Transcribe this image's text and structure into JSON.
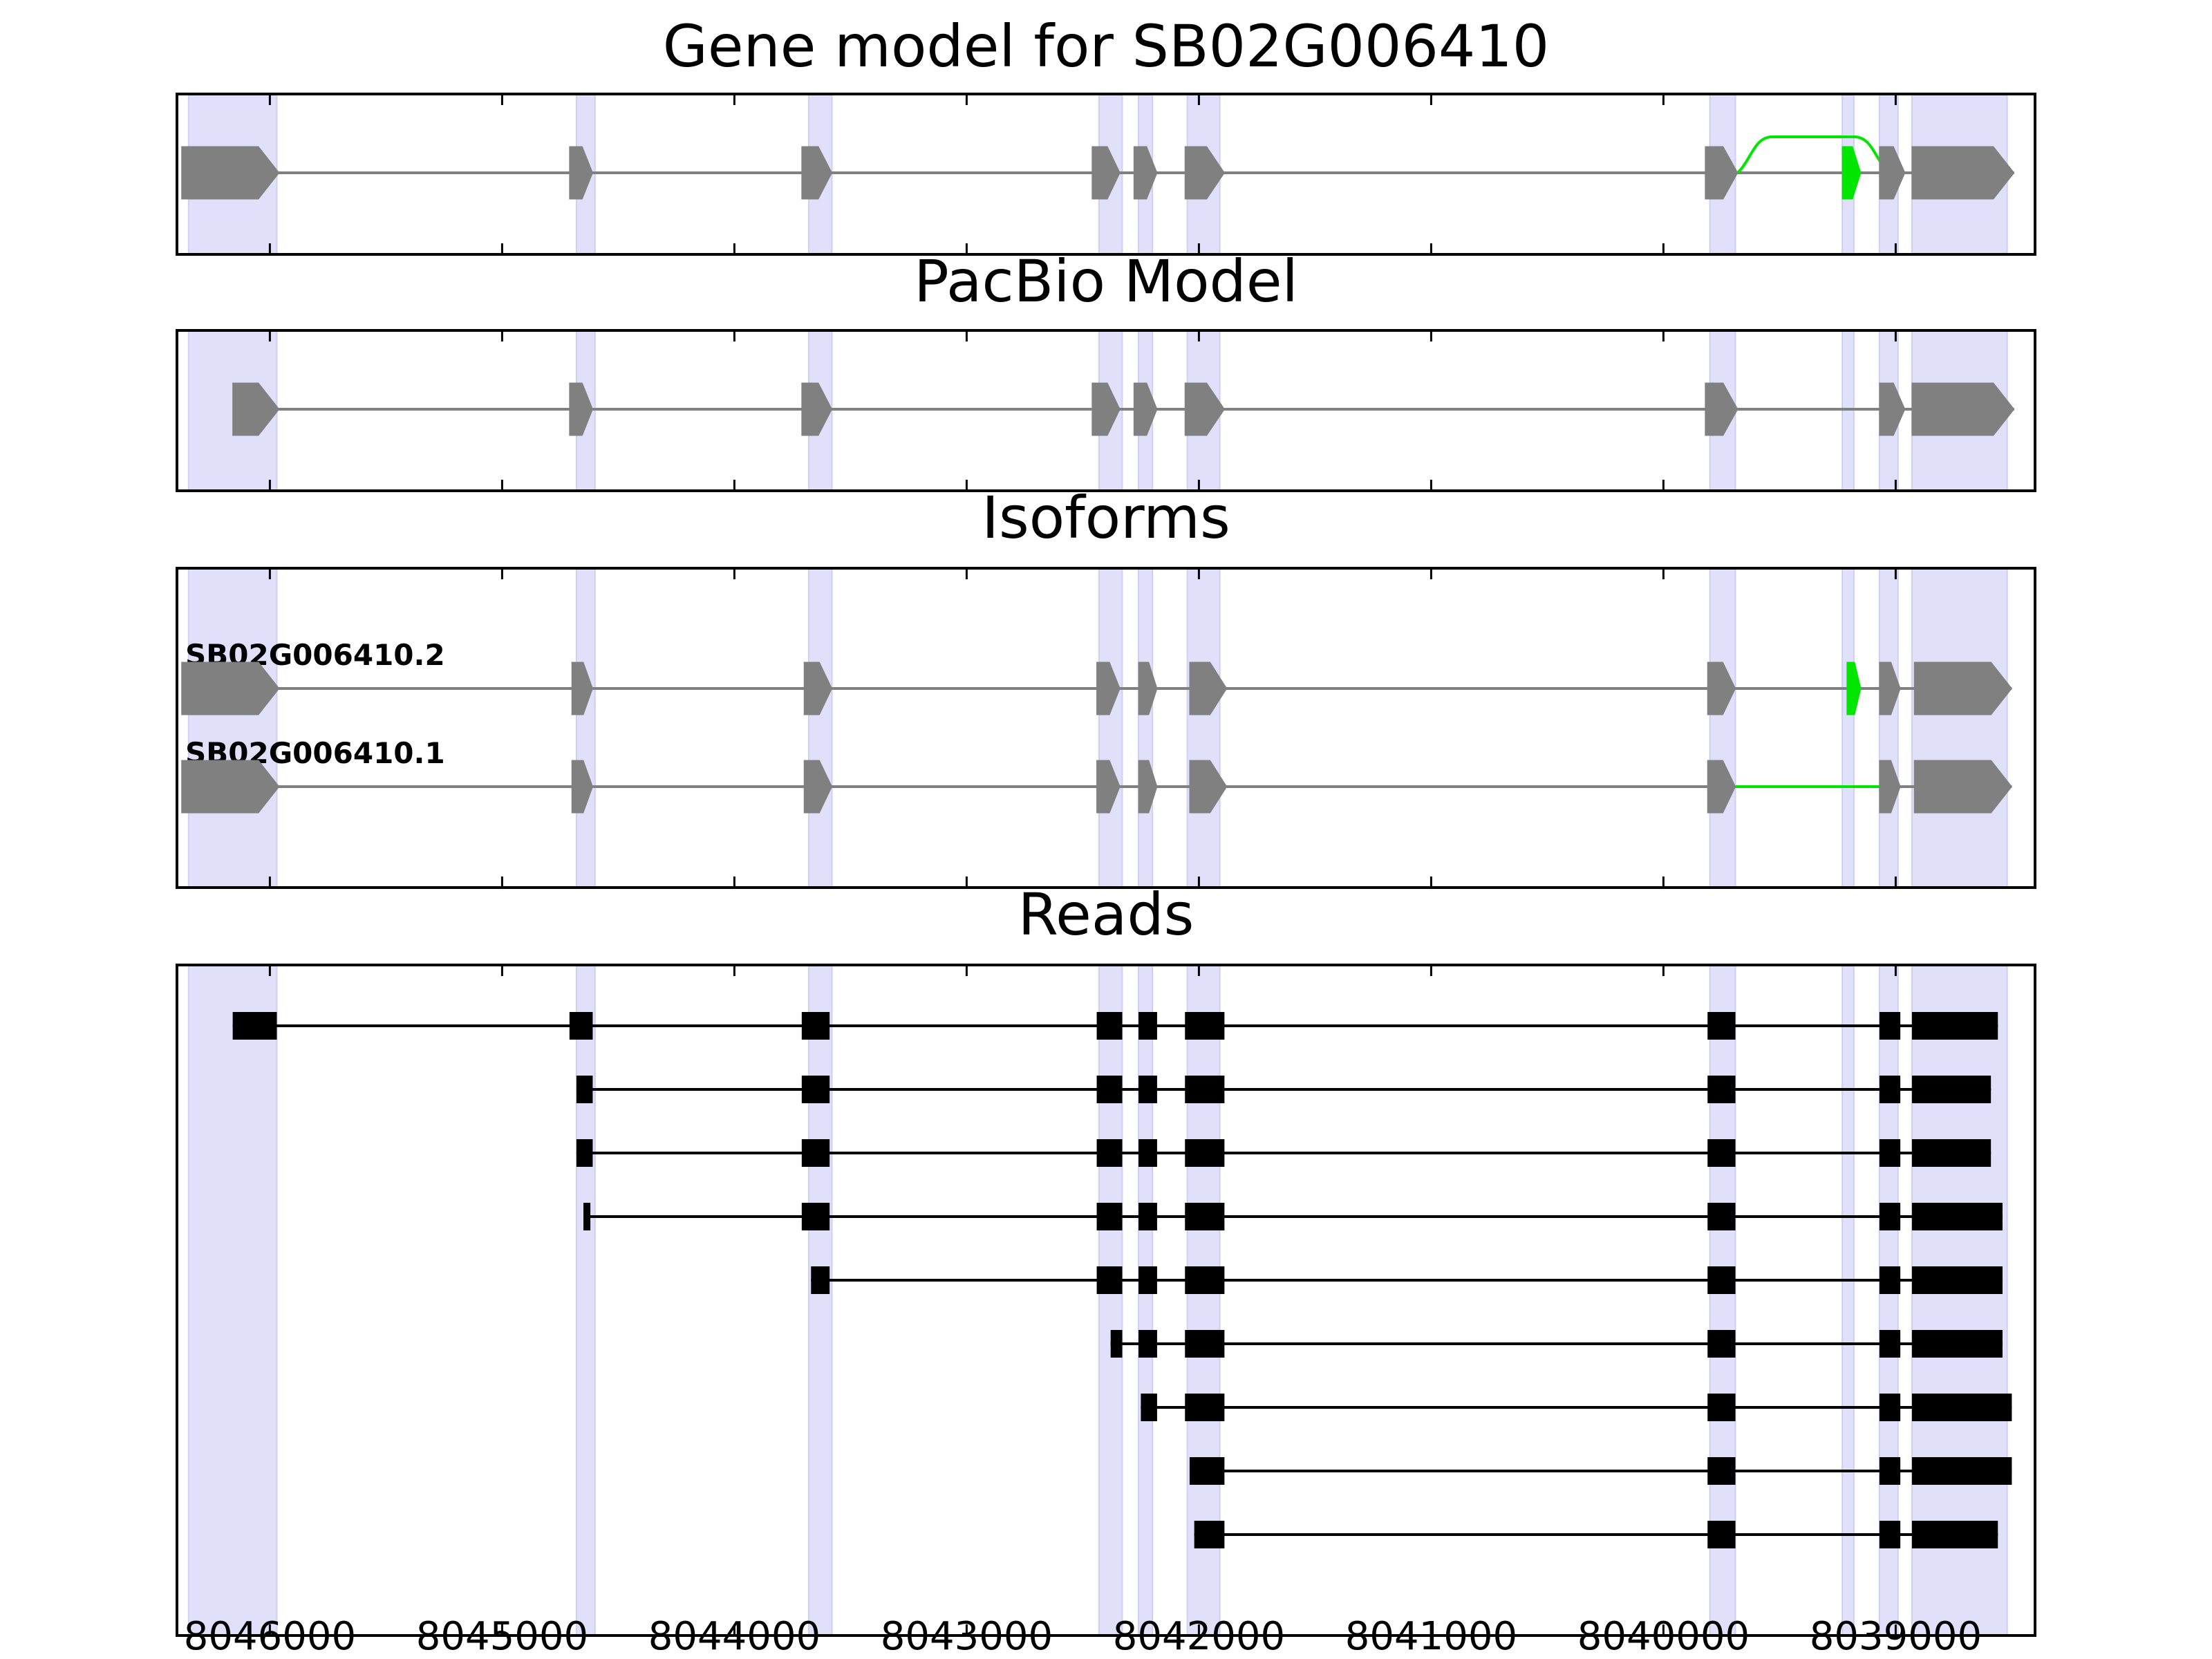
{
  "panels": {
    "gene_model_title": "Gene model for SB02G006410",
    "pacbio_title": "PacBio Model",
    "isoforms_title": "Isoforms",
    "reads_title": "Reads"
  },
  "x_axis": {
    "range": [
      8046400,
      8038400
    ],
    "reversed": true,
    "ticks": [
      8046000,
      8045000,
      8044000,
      8043000,
      8042000,
      8041000,
      8040000,
      8039000
    ],
    "tick_labels": [
      "8046000",
      "8045000",
      "8044000",
      "8043000",
      "8042000",
      "8041000",
      "8040000",
      "8039000"
    ]
  },
  "colors": {
    "exon": "#808080",
    "alt_feature": "#00e600",
    "read": "#000000",
    "highlight": "#e0e0fa",
    "axes": "#000000"
  },
  "chart_data": {
    "type": "gene-model",
    "strand": "-",
    "exon_highlights": [
      [
        8046350,
        8045970
      ],
      [
        8044680,
        8044600
      ],
      [
        8043680,
        8043580
      ],
      [
        8042430,
        8042330
      ],
      [
        8042260,
        8042200
      ],
      [
        8042050,
        8041910
      ],
      [
        8039800,
        8039690
      ],
      [
        8039230,
        8039180
      ],
      [
        8039070,
        8038990
      ],
      [
        8038930,
        8038520
      ]
    ],
    "gene_model": {
      "exons": [
        [
          8046380,
          8045960
        ],
        [
          8044710,
          8044610
        ],
        [
          8043710,
          8043580
        ],
        [
          8042460,
          8042340
        ],
        [
          8042280,
          8042180
        ],
        [
          8042060,
          8041890
        ],
        [
          8039820,
          8039680
        ],
        [
          8039070,
          8038960
        ],
        [
          8038930,
          8038490
        ]
      ],
      "alt_exons": [
        [
          8039230,
          8039150
        ]
      ],
      "alt_intron": [
        8039680,
        8039030
      ]
    },
    "pacbio_model": {
      "exons": [
        [
          8046160,
          8045960
        ],
        [
          8044710,
          8044610
        ],
        [
          8043710,
          8043580
        ],
        [
          8042460,
          8042340
        ],
        [
          8042280,
          8042180
        ],
        [
          8042060,
          8041890
        ],
        [
          8039820,
          8039680
        ],
        [
          8039070,
          8038960
        ],
        [
          8038930,
          8038490
        ]
      ]
    },
    "isoforms": [
      {
        "name": "SB02G006410.2",
        "exons": [
          [
            8046380,
            8045960
          ],
          [
            8044700,
            8044610
          ],
          [
            8043700,
            8043580
          ],
          [
            8042440,
            8042340
          ],
          [
            8042260,
            8042180
          ],
          [
            8042040,
            8041880
          ],
          [
            8039810,
            8039690
          ],
          [
            8039070,
            8038980
          ],
          [
            8038920,
            8038500
          ]
        ],
        "alt_exons": [
          [
            8039210,
            8039150
          ]
        ]
      },
      {
        "name": "SB02G006410.1",
        "exons": [
          [
            8046380,
            8045960
          ],
          [
            8044700,
            8044610
          ],
          [
            8043700,
            8043580
          ],
          [
            8042440,
            8042340
          ],
          [
            8042260,
            8042180
          ],
          [
            8042040,
            8041880
          ],
          [
            8039810,
            8039690
          ],
          [
            8039070,
            8038980
          ],
          [
            8038920,
            8038500
          ]
        ],
        "alt_intron": [
          8039690,
          8039070
        ]
      }
    ],
    "reads": [
      [
        [
          8046160,
          8045970
        ],
        [
          8044710,
          8044610
        ],
        [
          8043710,
          8043590
        ],
        [
          8042440,
          8042330
        ],
        [
          8042260,
          8042180
        ],
        [
          8042060,
          8041890
        ],
        [
          8039810,
          8039690
        ],
        [
          8039070,
          8038980
        ],
        [
          8038930,
          8038560
        ]
      ],
      [
        [
          8044680,
          8044610
        ],
        [
          8043710,
          8043590
        ],
        [
          8042440,
          8042330
        ],
        [
          8042260,
          8042180
        ],
        [
          8042060,
          8041890
        ],
        [
          8039810,
          8039690
        ],
        [
          8039070,
          8038980
        ],
        [
          8038930,
          8038590
        ]
      ],
      [
        [
          8044680,
          8044610
        ],
        [
          8043710,
          8043590
        ],
        [
          8042440,
          8042330
        ],
        [
          8042260,
          8042180
        ],
        [
          8042060,
          8041890
        ],
        [
          8039810,
          8039690
        ],
        [
          8039070,
          8038980
        ],
        [
          8038930,
          8038590
        ]
      ],
      [
        [
          8044650,
          8044620
        ],
        [
          8043710,
          8043590
        ],
        [
          8042440,
          8042330
        ],
        [
          8042260,
          8042180
        ],
        [
          8042060,
          8041890
        ],
        [
          8039810,
          8039690
        ],
        [
          8039070,
          8038980
        ],
        [
          8038930,
          8038540
        ]
      ],
      [
        [
          8043670,
          8043590
        ],
        [
          8042440,
          8042330
        ],
        [
          8042260,
          8042180
        ],
        [
          8042060,
          8041890
        ],
        [
          8039810,
          8039690
        ],
        [
          8039070,
          8038980
        ],
        [
          8038930,
          8038540
        ]
      ],
      [
        [
          8042380,
          8042330
        ],
        [
          8042260,
          8042180
        ],
        [
          8042060,
          8041890
        ],
        [
          8039810,
          8039690
        ],
        [
          8039070,
          8038980
        ],
        [
          8038930,
          8038540
        ]
      ],
      [
        [
          8042250,
          8042180
        ],
        [
          8042060,
          8041890
        ],
        [
          8039810,
          8039690
        ],
        [
          8039070,
          8038980
        ],
        [
          8038930,
          8038500
        ]
      ],
      [
        [
          8042040,
          8041890
        ],
        [
          8039810,
          8039690
        ],
        [
          8039070,
          8038980
        ],
        [
          8038930,
          8038500
        ]
      ],
      [
        [
          8042020,
          8041890
        ],
        [
          8039810,
          8039690
        ],
        [
          8039070,
          8038980
        ],
        [
          8038930,
          8038560
        ]
      ]
    ]
  }
}
